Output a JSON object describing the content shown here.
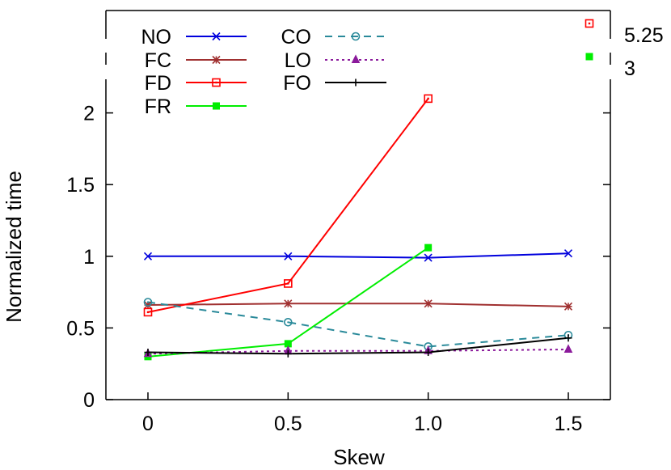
{
  "chart_data": {
    "type": "line",
    "title": "",
    "xlabel": "Skew",
    "ylabel": "Normalized time",
    "x": [
      0,
      0.5,
      1.0,
      1.5
    ],
    "x_tick_labels": [
      "0",
      "0.5",
      "1.0",
      "1.5"
    ],
    "y_ticks": [
      0,
      0.5,
      1,
      1.5,
      2
    ],
    "y_tick_labels": [
      "0",
      "0.5",
      "1",
      "1.5",
      "2"
    ],
    "xlim": [
      -0.15,
      1.65
    ],
    "ylim": [
      0,
      2.15
    ],
    "broken_axis_ticks": [
      "5.25",
      "3"
    ],
    "grid": false,
    "legend_position": "top-left",
    "series": [
      {
        "name": "NO",
        "color": "#0000dd",
        "marker": "x",
        "dash": "solid",
        "values": [
          1.0,
          1.0,
          0.99,
          1.02
        ]
      },
      {
        "name": "FC",
        "color": "#a03030",
        "marker": "star",
        "dash": "solid",
        "values": [
          0.66,
          0.67,
          0.67,
          0.65
        ]
      },
      {
        "name": "FD",
        "color": "#ff0000",
        "marker": "open-square",
        "dash": "solid",
        "values": [
          0.61,
          0.81,
          2.1,
          null
        ],
        "offscale_marker": "5.25"
      },
      {
        "name": "FR",
        "color": "#00ee00",
        "marker": "filled-square",
        "dash": "solid",
        "values": [
          0.3,
          0.39,
          1.06,
          null
        ],
        "offscale_marker": "3"
      },
      {
        "name": "CO",
        "color": "#2a8a9a",
        "marker": "open-circle",
        "dash": "dashed",
        "values": [
          0.68,
          0.54,
          0.37,
          0.45
        ]
      },
      {
        "name": "LO",
        "color": "#8b1a9b",
        "marker": "triangle",
        "dash": "dotted",
        "values": [
          0.32,
          0.34,
          0.34,
          0.35
        ]
      },
      {
        "name": "FO",
        "color": "#000000",
        "marker": "plus",
        "dash": "solid",
        "values": [
          0.33,
          0.32,
          0.33,
          0.43
        ]
      }
    ]
  }
}
